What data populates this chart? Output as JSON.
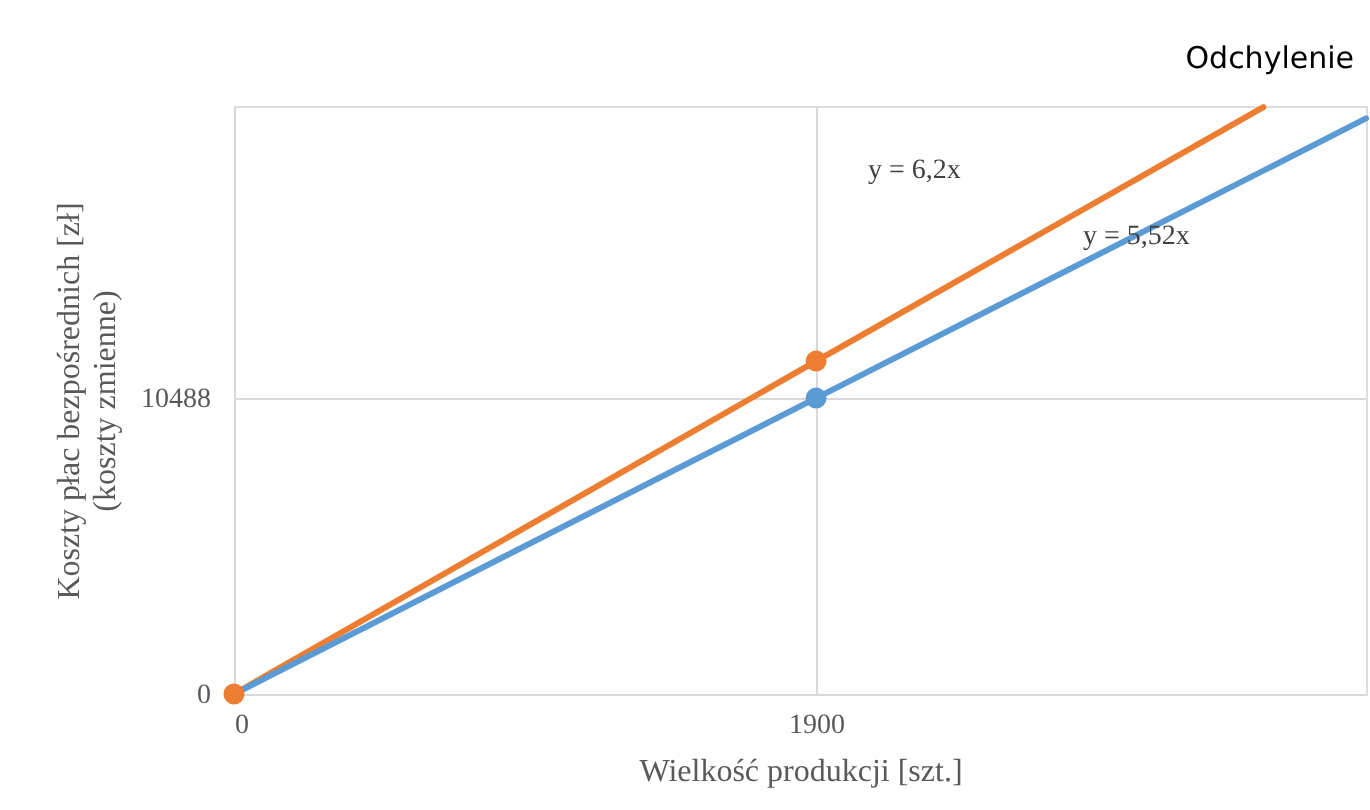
{
  "chart_data": {
    "type": "line",
    "xlabel": "Wielkość produkcji  [szt.]",
    "ylabel": "Koszty płac bezpośrednich [zł]\n(koszty zmienne)",
    "xlim": [
      0,
      3695
    ],
    "ylim": [
      0,
      20841
    ],
    "xticks": [
      0,
      1900
    ],
    "yticks": [
      0,
      10488
    ],
    "grid": true,
    "line_style": "solid",
    "series": [
      {
        "color": "#ed7d31",
        "x": [
          0,
          1900,
          3360
        ],
        "values": [
          0,
          11800,
          20800
        ],
        "marker": "none"
      },
      {
        "color": "#5b9bd5",
        "x": [
          0,
          1900,
          3695
        ],
        "values": [
          0,
          10488,
          20400
        ],
        "marker": "none"
      },
      {
        "type": "scatter",
        "color": "#ed7d31",
        "x": [
          0,
          1900
        ],
        "values": [
          0,
          11800
        ],
        "marker": "circle"
      },
      {
        "type": "scatter",
        "color": "#5b9bd5",
        "x": [
          1900
        ],
        "values": [
          10488
        ],
        "marker": "circle"
      }
    ],
    "annotations": [
      "y = 6,2x",
      "y = 5,52x",
      "Odchylenie"
    ]
  }
}
